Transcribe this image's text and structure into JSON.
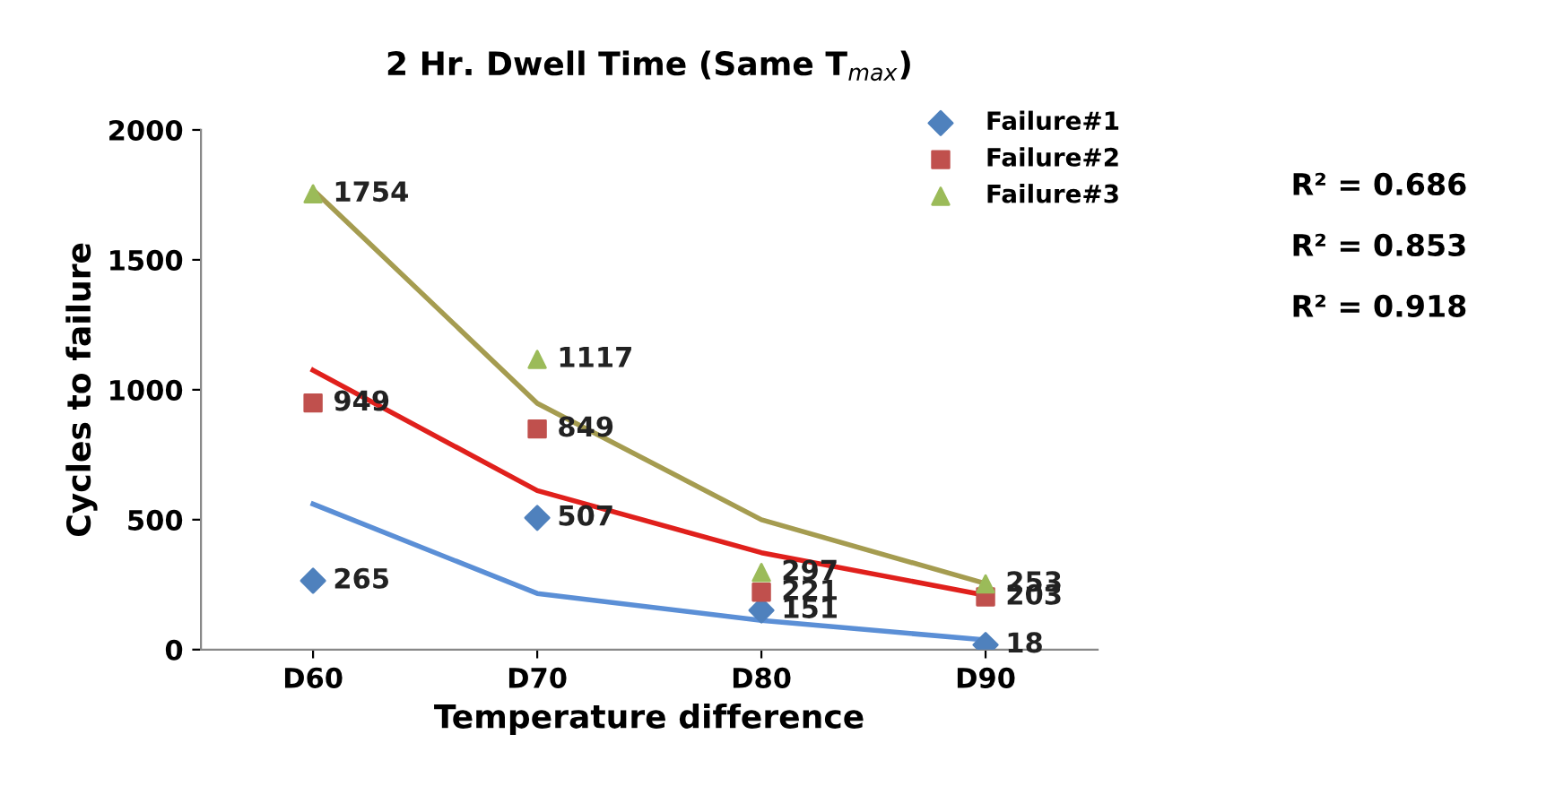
{
  "chart_data": {
    "type": "scatter",
    "title": "2 Hr. Dwell Time (Same T$_{max}$)",
    "xlabel": "Temperature difference",
    "ylabel": "Cycles to failure",
    "categories": [
      "D60",
      "D70",
      "D80",
      "D90"
    ],
    "series": [
      {
        "name": "Failure#1",
        "marker": "diamond",
        "color": "#4f81bd",
        "values": [
          265,
          507,
          151,
          18
        ],
        "data_labels": true
      },
      {
        "name": "Failure#2",
        "marker": "square",
        "color": "#c0504d",
        "values": [
          949,
          849,
          221,
          203
        ],
        "data_labels": true
      },
      {
        "name": "Failure#3",
        "marker": "triangle",
        "color": "#9bbb59",
        "values": [
          1754,
          1117,
          297,
          253
        ],
        "data_labels": true
      },
      {
        "type": "line",
        "marker": "none",
        "color": "#5b8fd6",
        "values": [
          560,
          216,
          112,
          37
        ]
      },
      {
        "type": "line",
        "marker": "none",
        "color": "#e0201c",
        "values": [
          1075,
          612,
          373,
          209
        ]
      },
      {
        "type": "line",
        "marker": "none",
        "color": "#a59c50",
        "values": [
          1770,
          948,
          500,
          254
        ]
      }
    ],
    "ylim": [
      0,
      2000
    ],
    "yticks": [
      0,
      500,
      1000,
      1500,
      2000
    ],
    "grid": false,
    "legend": "top right",
    "annotations": [
      "R² = 0.686",
      "R² = 0.853",
      "R² = 0.918"
    ]
  }
}
